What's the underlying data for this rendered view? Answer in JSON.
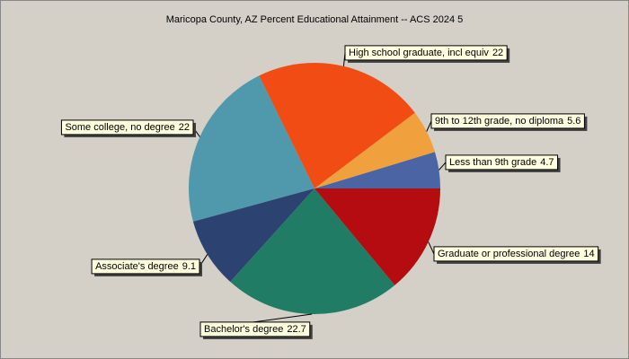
{
  "chart_data": {
    "type": "pie",
    "title": "Maricopa County, AZ Percent Educational Attainment -- ACS 2024 5",
    "categories": [
      "Less than 9th grade",
      "9th to 12th grade, no diploma",
      "High school graduate, incl equiv",
      "Some college, no degree",
      "Associate's degree",
      "Bachelor's degree",
      "Graduate or professional degree"
    ],
    "values": [
      4.7,
      5.6,
      22,
      22,
      9.1,
      22.7,
      14
    ],
    "colors": [
      "#4a64a4",
      "#f0a03c",
      "#f04c14",
      "#5098ac",
      "#2c4270",
      "#207c64",
      "#b40c10"
    ]
  }
}
